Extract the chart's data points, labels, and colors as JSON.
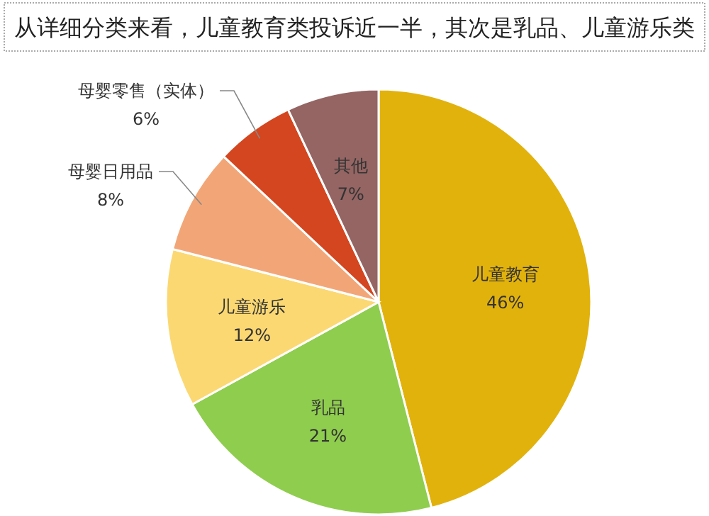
{
  "chart_data": {
    "type": "pie",
    "title": "从详细分类来看，儿童教育类投诉近一半，其次是乳品、儿童游乐类",
    "categories": [
      "儿童教育",
      "乳品",
      "儿童游乐",
      "母婴日用品",
      "母婴零售（实体）",
      "其他"
    ],
    "values": [
      46,
      21,
      12,
      8,
      6,
      7
    ],
    "colors": [
      "#e2b20c",
      "#8fcd4e",
      "#fbd872",
      "#f2a677",
      "#d4461f",
      "#946563"
    ],
    "value_labels": [
      "46%",
      "21%",
      "12%",
      "8%",
      "6%",
      "7%"
    ]
  }
}
